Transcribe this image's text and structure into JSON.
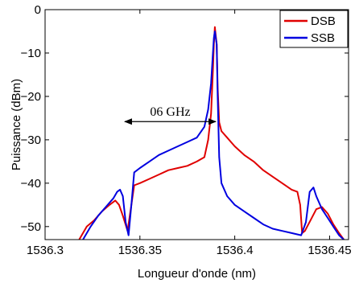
{
  "chart_data": {
    "type": "line",
    "xlabel": "Longueur d'onde (nm)",
    "ylabel": "Puissance (dBm)",
    "xlim": [
      1536.3,
      1536.46
    ],
    "ylim": [
      -53,
      0
    ],
    "x_ticks": [
      1536.3,
      1536.35,
      1536.4,
      1536.45
    ],
    "x_tick_labels": [
      "1536.3",
      "1536.35",
      "1536.4",
      "1536.45"
    ],
    "y_ticks": [
      0,
      -10,
      -20,
      -30,
      -40,
      -50
    ],
    "y_tick_labels": [
      "0",
      "−10",
      "−20",
      "−30",
      "−40",
      "−50"
    ],
    "grid": false,
    "legend_position": "top-right",
    "annotation": {
      "text": "06 GHz",
      "x_start": 1536.342,
      "x_end": 1536.39,
      "y": -25.8
    },
    "series": [
      {
        "name": "DSB",
        "color": "#e00000",
        "x": [
          1536.318,
          1536.322,
          1536.326,
          1536.33,
          1536.334,
          1536.337,
          1536.339,
          1536.341,
          1536.3435,
          1536.3455,
          1536.347,
          1536.35,
          1536.355,
          1536.36,
          1536.365,
          1536.37,
          1536.375,
          1536.38,
          1536.384,
          1536.386,
          1536.3875,
          1536.3885,
          1536.389,
          1536.3895,
          1536.3905,
          1536.391,
          1536.3918,
          1536.393,
          1536.396,
          1536.4,
          1536.405,
          1536.41,
          1536.415,
          1536.42,
          1536.425,
          1536.43,
          1536.433,
          1536.4345,
          1536.4355,
          1536.437,
          1536.44,
          1536.443,
          1536.446,
          1536.449,
          1536.452,
          1536.455,
          1536.4575
        ],
        "y": [
          -53,
          -50,
          -48.5,
          -46.5,
          -45,
          -44,
          -45,
          -47.5,
          -51,
          -45,
          -40.5,
          -40,
          -39,
          -38,
          -37,
          -36.5,
          -36,
          -35,
          -34,
          -30,
          -24,
          -14,
          -8,
          -4,
          -8,
          -18,
          -26,
          -28,
          -29.5,
          -31.5,
          -33.5,
          -35,
          -37,
          -38.5,
          -40,
          -41.5,
          -42,
          -45,
          -51.5,
          -51,
          -48.5,
          -46,
          -45.5,
          -47,
          -49.5,
          -51.5,
          -53
        ]
      },
      {
        "name": "SSB",
        "color": "#0000e0",
        "x": [
          1536.32,
          1536.324,
          1536.328,
          1536.332,
          1536.336,
          1536.338,
          1536.3395,
          1536.341,
          1536.3425,
          1536.344,
          1536.3455,
          1536.347,
          1536.35,
          1536.355,
          1536.36,
          1536.365,
          1536.37,
          1536.375,
          1536.38,
          1536.384,
          1536.386,
          1536.3875,
          1536.3885,
          1536.389,
          1536.3895,
          1536.3905,
          1536.391,
          1536.3918,
          1536.393,
          1536.396,
          1536.4,
          1536.405,
          1536.41,
          1536.415,
          1536.42,
          1536.425,
          1536.43,
          1536.435,
          1536.4375,
          1536.4395,
          1536.4415,
          1536.443,
          1536.446,
          1536.449,
          1536.452,
          1536.455,
          1536.4575
        ],
        "y": [
          -53,
          -50,
          -47.5,
          -45.5,
          -43.5,
          -42,
          -41.5,
          -43,
          -49,
          -52,
          -45,
          -37.5,
          -36.5,
          -35,
          -33.5,
          -32.5,
          -31.5,
          -30.5,
          -29.5,
          -27,
          -23,
          -17,
          -10,
          -6.5,
          -5,
          -8,
          -20,
          -34,
          -40,
          -43,
          -45,
          -46.5,
          -48,
          -49.5,
          -50.5,
          -51,
          -51.5,
          -52,
          -49,
          -42,
          -41,
          -43,
          -46,
          -48,
          -50,
          -52,
          -53
        ]
      }
    ]
  }
}
